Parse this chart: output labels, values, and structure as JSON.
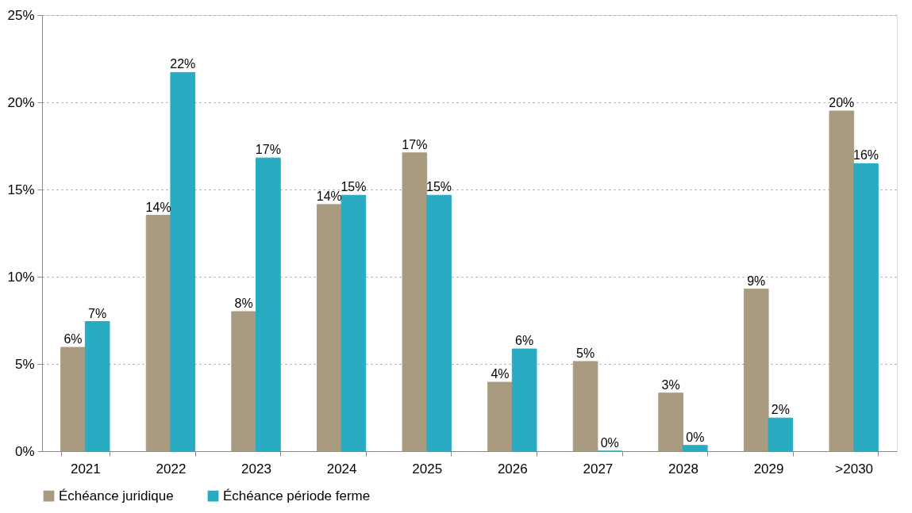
{
  "chart_data": {
    "type": "bar",
    "categories": [
      "2021",
      "2022",
      "2023",
      "2024",
      "2025",
      "2026",
      "2027",
      "2028",
      "2029",
      ">2030"
    ],
    "series": [
      {
        "name": "Échéance juridique",
        "color": "#a99b80",
        "values": [
          5.95,
          13.52,
          8.0,
          14.14,
          17.1,
          3.95,
          5.14,
          3.33,
          9.29,
          19.5
        ],
        "value_labels": [
          "6%",
          "14%",
          "8%",
          "14%",
          "17%",
          "4%",
          "5%",
          "3%",
          "9%",
          "20%"
        ]
      },
      {
        "name": "Échéance période ferme",
        "color": "#29abc2",
        "values": [
          7.43,
          21.71,
          16.81,
          14.67,
          14.67,
          5.86,
          0,
          0.33,
          1.9,
          16.48
        ],
        "value_labels": [
          "7%",
          "22%",
          "17%",
          "15%",
          "15%",
          "6%",
          "0%",
          "0%",
          "2%",
          "16%"
        ]
      }
    ],
    "ylim": [
      0,
      25
    ],
    "yticks": [
      {
        "value": 0,
        "label": "0%"
      },
      {
        "value": 5,
        "label": "5%"
      },
      {
        "value": 10,
        "label": "10%"
      },
      {
        "value": 15,
        "label": "15%"
      },
      {
        "value": 20,
        "label": "20%"
      },
      {
        "value": 25,
        "label": "25%"
      }
    ],
    "grid": "y",
    "legend": "bottom"
  }
}
